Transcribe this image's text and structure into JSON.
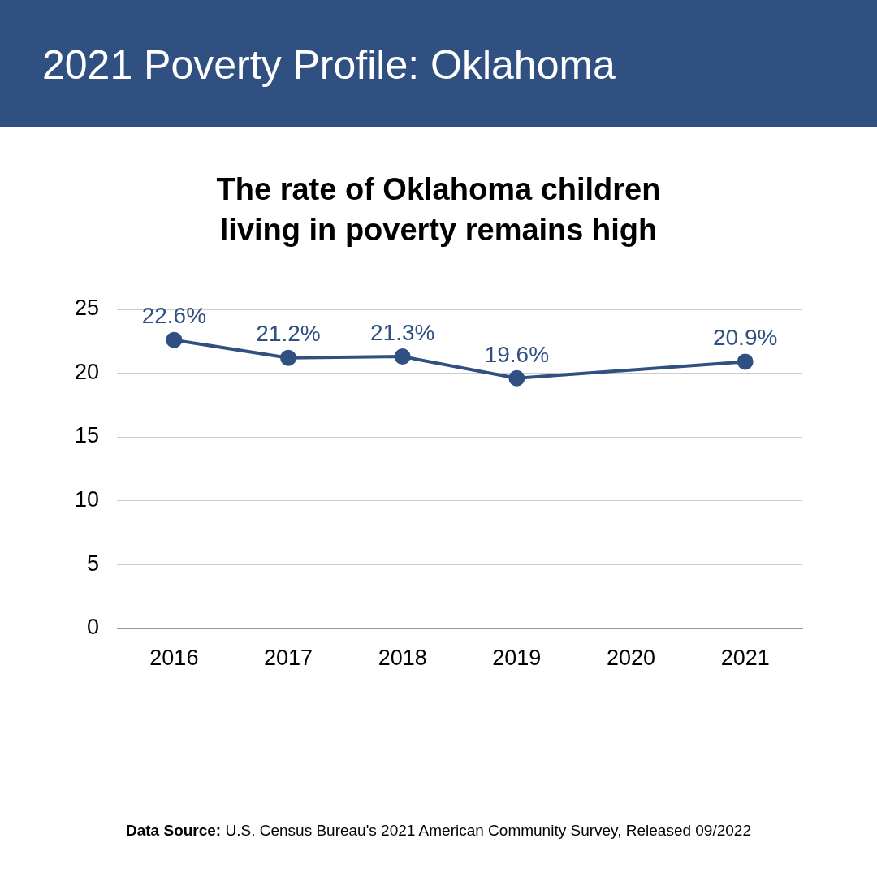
{
  "chart_data": {
    "type": "line",
    "title": "2021 Poverty Profile: Oklahoma",
    "subtitle": "The rate of Oklahoma children\nliving in poverty remains high",
    "categories": [
      "2016",
      "2017",
      "2018",
      "2019",
      "2020",
      "2021"
    ],
    "series": [
      {
        "color": "#2f5081",
        "values": [
          22.6,
          21.2,
          21.3,
          19.6,
          null,
          20.9
        ],
        "value_labels": [
          "22.6%",
          "21.2%",
          "21.3%",
          "19.6%",
          null,
          "20.9%"
        ]
      }
    ],
    "ylim": [
      0,
      25
    ],
    "yticks": [
      0,
      5,
      10,
      15,
      20,
      25
    ],
    "grid": "y",
    "legend": false,
    "marker": "circle",
    "line_style": "solid",
    "annotations": [
      "Data Source: U.S. Census Bureau's 2021 American Community Survey, Released 09/2022"
    ]
  }
}
